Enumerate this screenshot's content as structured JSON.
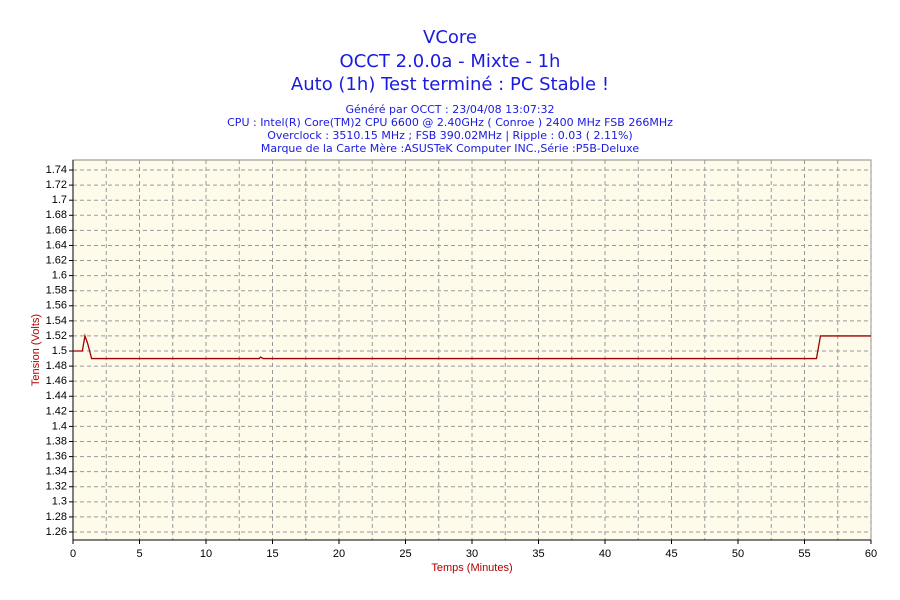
{
  "chart_data": {
    "type": "line",
    "title": "VCore",
    "subtitle_lines": [
      "OCCT 2.0.0a - Mixte - 1h",
      "Auto (1h) Test terminé : PC Stable !"
    ],
    "info_lines": [
      "Généré par OCCT : 23/04/08 13:07:32",
      "CPU : Intel(R) Core(TM)2 CPU 6600 @ 2.40GHz ( Conroe ) 2400 MHz FSB 266MHz",
      "Overclock : 3510.15 MHz ; FSB 390.02MHz | Ripple : 0.03 ( 2.11%)",
      "Marque de la Carte Mère :ASUSTeK Computer INC.,Série :P5B-Deluxe"
    ],
    "x_label": "Temps (Minutes)",
    "y_label": "Tension (Volts)",
    "x": [
      0,
      0.7,
      0.9,
      1.1,
      1.4,
      2,
      14,
      14.1,
      14.3,
      30,
      55.9,
      56.2,
      60
    ],
    "series": [
      {
        "color": "#a00000",
        "values": [
          1.5,
          1.5,
          1.52,
          1.51,
          1.49,
          1.49,
          1.49,
          1.492,
          1.49,
          1.49,
          1.49,
          1.52,
          1.52
        ]
      }
    ],
    "xlim": [
      0,
      60
    ],
    "xticks": [
      0,
      5,
      10,
      15,
      20,
      25,
      30,
      35,
      40,
      45,
      50,
      55,
      60
    ],
    "ylim": [
      1.2494,
      1.7533
    ],
    "yticks": [
      1.26,
      1.28,
      1.3,
      1.32,
      1.34,
      1.36,
      1.38,
      1.4,
      1.42,
      1.44,
      1.46,
      1.48,
      1.5,
      1.52,
      1.54,
      1.56,
      1.58,
      1.6,
      1.62,
      1.64,
      1.66,
      1.68,
      1.7,
      1.72,
      1.74
    ],
    "grid": true
  }
}
